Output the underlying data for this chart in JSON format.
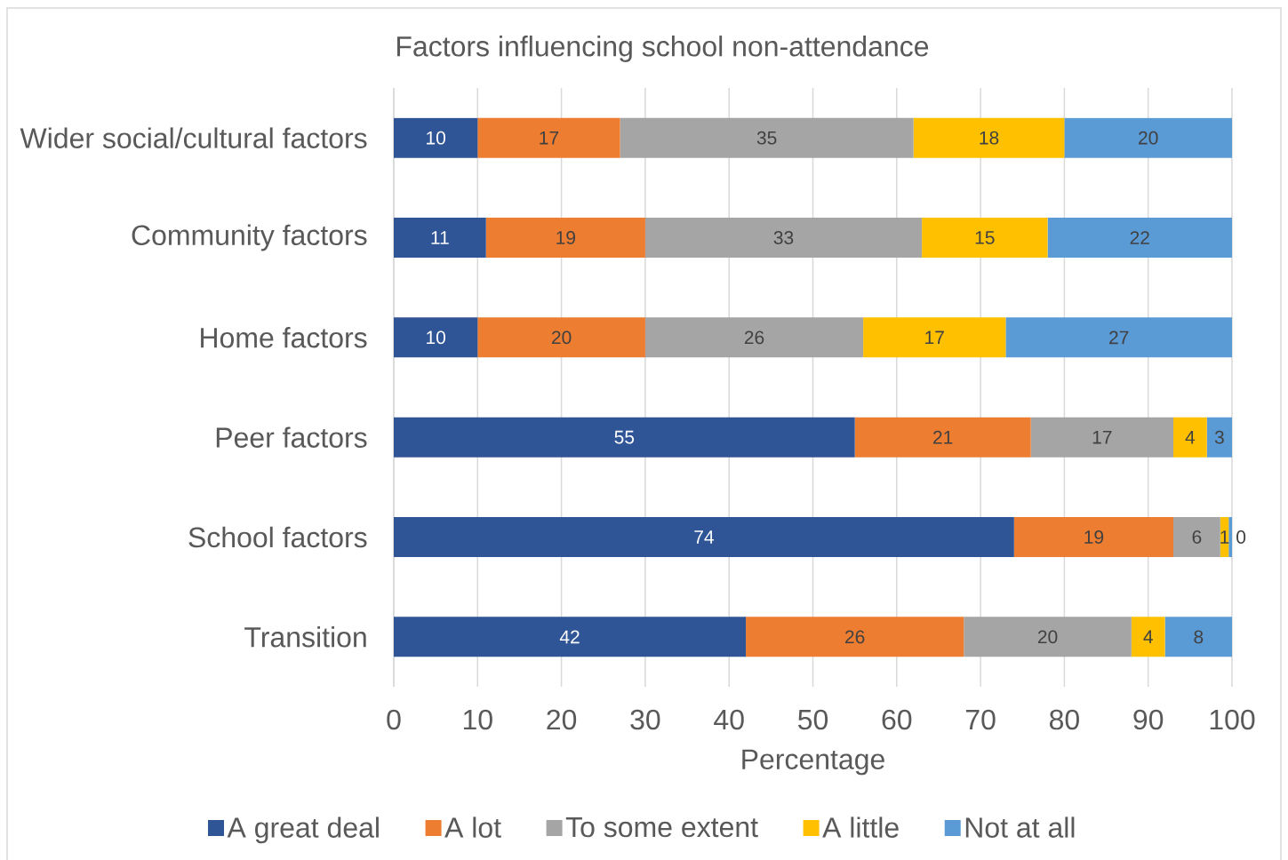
{
  "chart_data": {
    "type": "bar",
    "orientation": "horizontal",
    "stacked": true,
    "title": "Factors influencing school non-attendance",
    "xlabel": "Percentage",
    "categories": [
      "Wider social/cultural factors",
      "Community factors",
      "Home factors",
      "Peer factors",
      "School factors",
      "Transition"
    ],
    "series": [
      {
        "name": "A great deal",
        "color": "#2F5597",
        "values": [
          10,
          11,
          10,
          55,
          74,
          42
        ],
        "value_labels": [
          "10",
          "11",
          "10",
          "55",
          "74",
          "42"
        ]
      },
      {
        "name": "A lot",
        "color": "#ED7D31",
        "values": [
          17,
          19,
          20,
          21,
          19,
          26
        ],
        "value_labels": [
          "17",
          "19",
          "20",
          "21",
          "19",
          "26"
        ]
      },
      {
        "name": "To some extent",
        "color": "#A5A5A5",
        "values": [
          35,
          33,
          26,
          17,
          5.6,
          20
        ],
        "value_labels": [
          "35",
          "33",
          "26",
          "17",
          "6",
          "20"
        ]
      },
      {
        "name": "A little",
        "color": "#FFC000",
        "values": [
          18,
          15,
          17,
          4,
          1,
          4
        ],
        "value_labels": [
          "18",
          "15",
          "17",
          "4",
          "1",
          "4"
        ]
      },
      {
        "name": "Not at all",
        "color": "#5B9BD5",
        "values": [
          20,
          22,
          27,
          3,
          0.4,
          8
        ],
        "value_labels": [
          "20",
          "22",
          "27",
          "3",
          "0",
          "8"
        ]
      }
    ],
    "xlim": [
      0,
      100
    ],
    "xticks": [
      0,
      10,
      20,
      30,
      40,
      50,
      60,
      70,
      80,
      90,
      100
    ],
    "grid": "x",
    "legend": "bottom"
  }
}
